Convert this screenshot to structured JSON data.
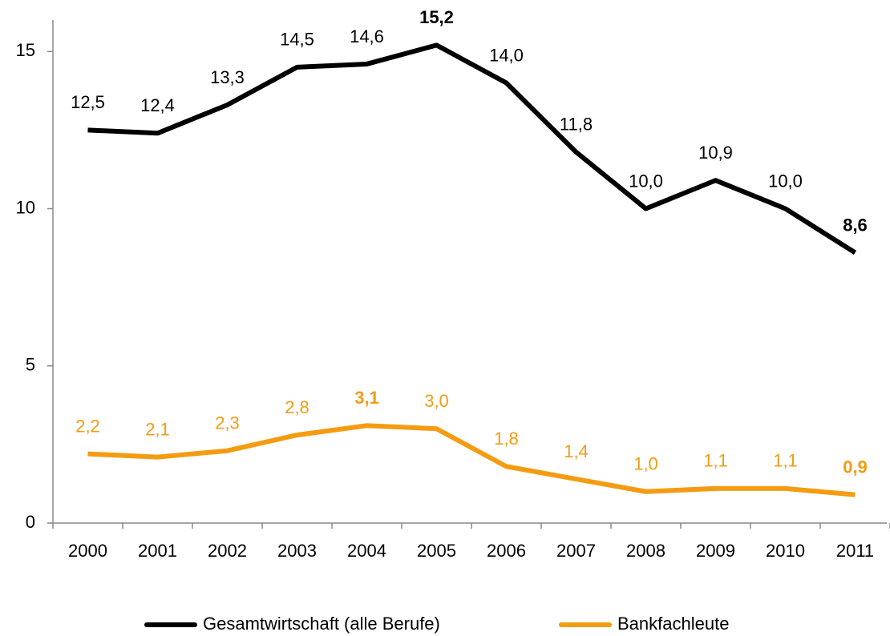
{
  "chart_data": {
    "type": "line",
    "categories": [
      "2000",
      "2001",
      "2002",
      "2003",
      "2004",
      "2005",
      "2006",
      "2007",
      "2008",
      "2009",
      "2010",
      "2011"
    ],
    "series": [
      {
        "name": "Gesamtwirtschaft (alle Berufe)",
        "color": "#000000",
        "values": [
          12.5,
          12.4,
          13.3,
          14.5,
          14.6,
          15.2,
          14.0,
          11.8,
          10.0,
          10.9,
          10.0,
          8.6
        ],
        "value_labels": [
          "12,5",
          "12,4",
          "13,3",
          "14,5",
          "14,6",
          "15,2",
          "14,0",
          "11,8",
          "10,0",
          "10,9",
          "10,0",
          "8,6"
        ],
        "bold_labels": [
          5,
          11
        ]
      },
      {
        "name": "Bankfachleute",
        "color": "#f39c12",
        "values": [
          2.2,
          2.1,
          2.3,
          2.8,
          3.1,
          3.0,
          1.8,
          1.4,
          1.0,
          1.1,
          1.1,
          0.9
        ],
        "value_labels": [
          "2,2",
          "2,1",
          "2,3",
          "2,8",
          "3,1",
          "3,0",
          "1,8",
          "1,4",
          "1,0",
          "1,1",
          "1,1",
          "0,9"
        ],
        "bold_labels": [
          4,
          11
        ]
      }
    ],
    "ylim": [
      0,
      16
    ],
    "yticks": [
      0,
      5,
      10,
      15
    ],
    "grid": false,
    "legend": "bottom"
  }
}
